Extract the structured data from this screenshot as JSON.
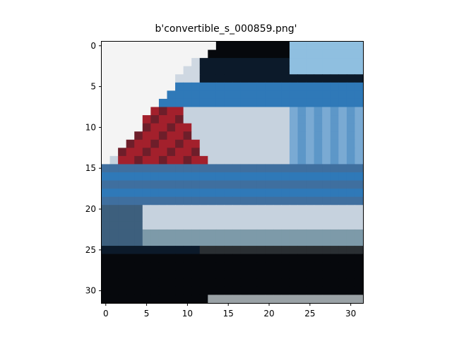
{
  "figure": {
    "title": "b'convertible_s_000859.png'"
  },
  "image": {
    "description_grid_size": 32,
    "xticks": [
      0,
      5,
      10,
      15,
      20,
      25,
      30
    ],
    "yticks": [
      0,
      5,
      10,
      15,
      20,
      25,
      30
    ]
  },
  "palette": {
    "white": "#f4f4f4",
    "black": "#06080c",
    "dark_navy": "#0c1a2a",
    "blue": "#2f79b8",
    "light_blue": "#8fbfe0",
    "silver": "#c6d2de",
    "grey": "#9aa2a6",
    "red": "#a3202c",
    "dark_red": "#6e1e2a"
  }
}
